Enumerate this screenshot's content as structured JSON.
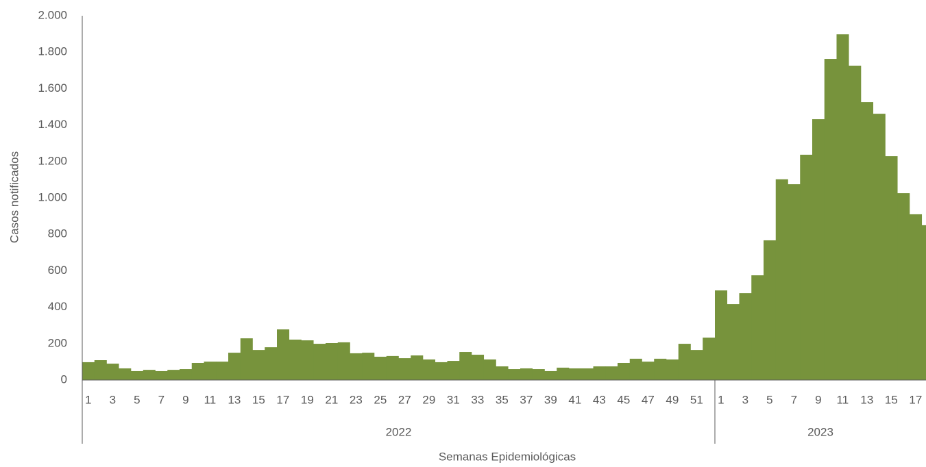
{
  "chart_data": {
    "type": "bar",
    "y_label": "Casos notificados",
    "x_label": "Semanas Epidemiológicas",
    "color": "#77933c",
    "ylim": [
      0,
      2000
    ],
    "yticks": [
      0,
      200,
      400,
      600,
      800,
      {
        "value": 1000,
        "label": "1.000"
      },
      {
        "value": 1200,
        "label": "1.200"
      },
      {
        "value": 1400,
        "label": "1.400"
      },
      {
        "value": 1600,
        "label": "1.600"
      },
      {
        "value": 1800,
        "label": "1.800"
      },
      {
        "value": 2000,
        "label": "2.000"
      }
    ],
    "groups": [
      {
        "name": "2022",
        "categories": [
          "1",
          null,
          "3",
          null,
          "5",
          null,
          "7",
          null,
          "9",
          null,
          "11",
          null,
          "13",
          null,
          "15",
          null,
          "17",
          null,
          "19",
          null,
          "21",
          null,
          "23",
          null,
          "25",
          null,
          "27",
          null,
          "29",
          null,
          "31",
          null,
          "33",
          null,
          "35",
          null,
          "37",
          null,
          "39",
          null,
          "41",
          null,
          "43",
          null,
          "45",
          null,
          "47",
          null,
          "49",
          null,
          "51",
          null
        ],
        "values": [
          98,
          109,
          90,
          64,
          49,
          56,
          49,
          56,
          60,
          94,
          101,
          101,
          150,
          229,
          165,
          180,
          278,
          222,
          218,
          199,
          203,
          207,
          147,
          150,
          128,
          132,
          120,
          135,
          113,
          98,
          105,
          154,
          139,
          113,
          75,
          60,
          64,
          60,
          49,
          68,
          64,
          64,
          75,
          75,
          94,
          117,
          101,
          117,
          113,
          199,
          165,
          233
        ]
      },
      {
        "name": "2023",
        "categories": [
          "1",
          null,
          "3",
          null,
          "5",
          null,
          "7",
          null,
          "9",
          null,
          "11",
          null,
          "13",
          null,
          "15",
          null,
          "17",
          null
        ],
        "values": [
          492,
          417,
          477,
          575,
          767,
          1102,
          1075,
          1237,
          1432,
          1763,
          1898,
          1726,
          1526,
          1462,
          1229,
          1026,
          910,
          850
        ]
      }
    ]
  }
}
